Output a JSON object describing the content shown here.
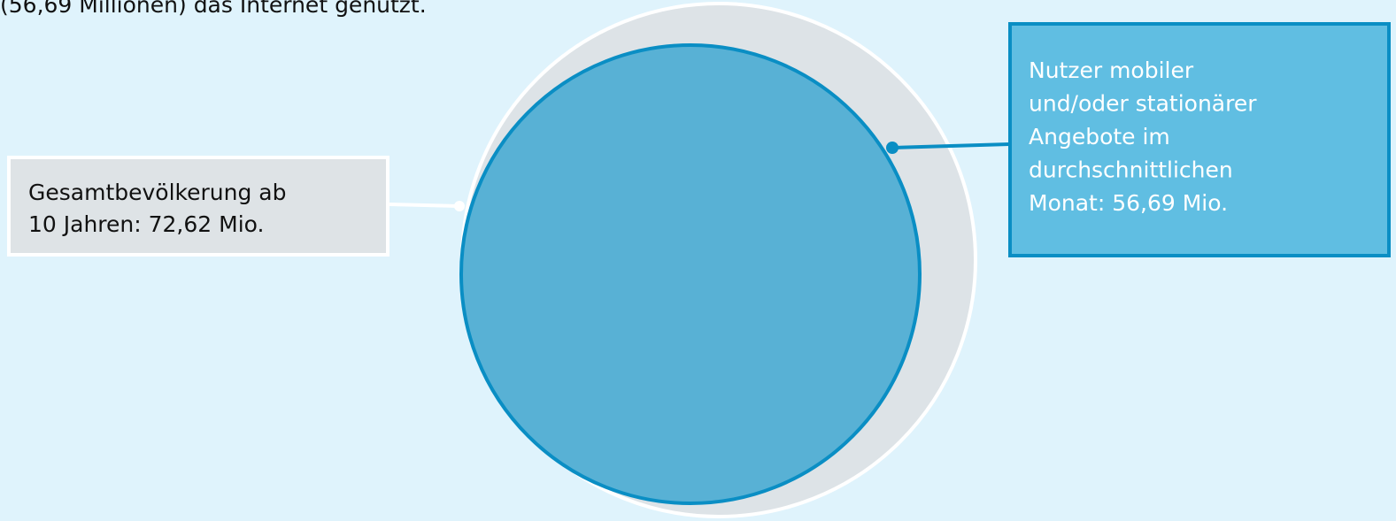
{
  "intro": {
    "text": "(56,69 Millionen) das Internet genutzt."
  },
  "population": {
    "lines": [
      "Gesamtbevölkerung ab",
      "10 Jahren: 72,62 Mio."
    ]
  },
  "users": {
    "lines": [
      "Nutzer mobiler",
      "und/oder stationärer",
      "Angebote im",
      "durchschnittlichen",
      "Monat: 56,69 Mio."
    ]
  }
}
